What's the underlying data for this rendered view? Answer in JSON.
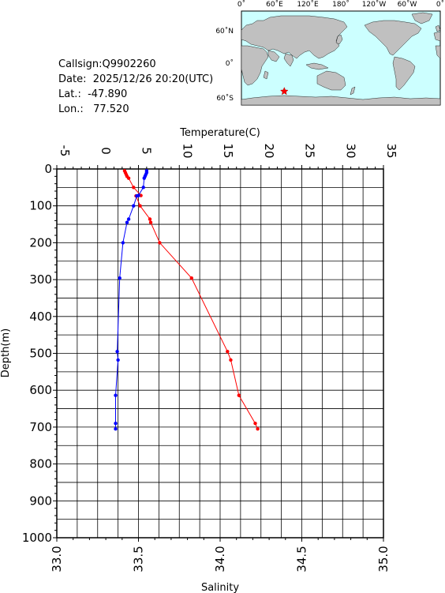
{
  "info": {
    "callsign": "Callsign:Q9902260",
    "date": "Date:  2025/12/26 20:20(UTC)",
    "lat": "Lat.:  -47.890",
    "lon": "Lon.:   77.520"
  },
  "map": {
    "lon_labels": [
      "0˚",
      "60˚E",
      "120˚E",
      "180˚",
      "120˚W",
      "60˚W",
      "0˚"
    ],
    "lat_labels": [
      "60˚N",
      "0˚",
      "60˚S"
    ],
    "station": {
      "lat": -47.89,
      "lon": 77.52
    },
    "colors": {
      "ocean": "#ccffff",
      "land": "#c0c0c0",
      "marker": "#ff0000"
    }
  },
  "chart_data": {
    "type": "line",
    "top_axis": {
      "label": "Temperature(C)",
      "range": [
        -5,
        35
      ],
      "ticks": [
        "-5",
        "0",
        "5",
        "10",
        "15",
        "20",
        "25",
        "30",
        "35"
      ]
    },
    "bottom_axis": {
      "label": "Salinity",
      "range": [
        33.0,
        35.0
      ],
      "ticks": [
        "33.0",
        "33.5",
        "34.0",
        "34.5",
        "35.0"
      ]
    },
    "y_axis": {
      "label": "Depth(m)",
      "range": [
        0,
        1000
      ],
      "ticks": [
        "0",
        "100",
        "200",
        "300",
        "400",
        "500",
        "600",
        "700",
        "800",
        "900",
        "1000"
      ]
    },
    "grid": true,
    "series": [
      {
        "axis": "temperature",
        "color": "#ff0000",
        "points": [
          [
            3.3,
            5
          ],
          [
            3.4,
            10
          ],
          [
            3.5,
            15
          ],
          [
            3.6,
            20
          ],
          [
            3.8,
            25
          ],
          [
            4.4,
            50
          ],
          [
            5.3,
            72
          ],
          [
            4.7,
            73
          ],
          [
            5.2,
            100
          ],
          [
            6.4,
            136
          ],
          [
            6.5,
            145
          ],
          [
            7.6,
            200
          ],
          [
            11.5,
            296
          ],
          [
            15.9,
            495
          ],
          [
            16.3,
            518
          ],
          [
            17.3,
            614
          ],
          [
            19.3,
            690
          ],
          [
            19.6,
            705
          ]
        ]
      },
      {
        "axis": "salinity",
        "color": "#0000ff",
        "points": [
          [
            33.55,
            5
          ],
          [
            33.55,
            10
          ],
          [
            33.545,
            15
          ],
          [
            33.54,
            20
          ],
          [
            33.535,
            25
          ],
          [
            33.53,
            50
          ],
          [
            33.5,
            72
          ],
          [
            33.49,
            73
          ],
          [
            33.47,
            100
          ],
          [
            33.44,
            136
          ],
          [
            33.43,
            145
          ],
          [
            33.405,
            200
          ],
          [
            33.385,
            296
          ],
          [
            33.37,
            495
          ],
          [
            33.375,
            518
          ],
          [
            33.36,
            614
          ],
          [
            33.36,
            690
          ],
          [
            33.36,
            705
          ]
        ]
      }
    ]
  }
}
